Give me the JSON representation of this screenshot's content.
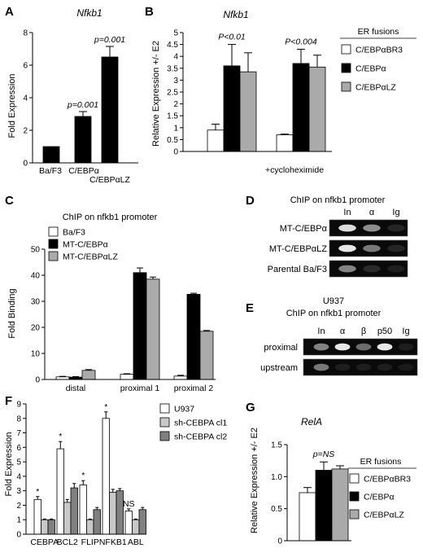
{
  "panels": {
    "A": {
      "letter": "A",
      "chart_data": {
        "type": "bar",
        "title": "Nfkb1",
        "ylabel": "Fold Expression",
        "ylim": [
          0,
          8
        ],
        "yticks": [
          "0",
          "2",
          "4",
          "6",
          "8"
        ],
        "categories": [
          "Ba/F3",
          "C/EBPα",
          "C/EBPαLZ"
        ],
        "values": [
          1.0,
          2.85,
          6.5
        ],
        "errors": [
          0,
          0.3,
          0.65
        ],
        "pvalues": [
          "",
          "p=0.001",
          "p=0.001"
        ],
        "color": "#000000"
      }
    },
    "B": {
      "letter": "B",
      "chart_data": {
        "type": "bar",
        "title": "Nfkb1",
        "ylabel": "Relative Expression +/- E2",
        "ylim": [
          0,
          5
        ],
        "yticks": [
          "0",
          "0.5",
          "1",
          "1.5",
          "2",
          "2.5",
          "3",
          "3.5",
          "4",
          "4.5",
          "5"
        ],
        "categories": [
          "",
          "+cycloheximide"
        ],
        "pvalues": [
          "P<0.01",
          "P<0.004"
        ],
        "legend_title": "ER fusions",
        "series": [
          {
            "name": "C/EBPαBR3",
            "values": [
              0.9,
              0.7
            ],
            "errors": [
              0.25,
              0.03
            ],
            "color": "#ffffff"
          },
          {
            "name": "C/EBPα",
            "values": [
              3.6,
              3.7
            ],
            "errors": [
              0.9,
              0.6
            ],
            "color": "#000000"
          },
          {
            "name": "C/EBPαLZ",
            "values": [
              3.35,
              3.55
            ],
            "errors": [
              0.8,
              0.5
            ],
            "color": "#aaaaaa"
          }
        ]
      }
    },
    "C": {
      "letter": "C",
      "chart_data": {
        "type": "bar",
        "title": "ChIP on nfkb1 promoter",
        "ylabel": "Fold Binding",
        "ylim": [
          0,
          50
        ],
        "yticks": [
          "0",
          "10",
          "20",
          "30",
          "40",
          "50"
        ],
        "categories": [
          "distal",
          "proximal 1",
          "proximal 2"
        ],
        "series": [
          {
            "name": "Ba/F3",
            "values": [
              1.0,
              2.0,
              1.3
            ],
            "errors": [
              0.2,
              0.2,
              0.3
            ],
            "color": "#ffffff"
          },
          {
            "name": "MT-C/EBPα",
            "values": [
              0.9,
              41.0,
              32.7
            ],
            "errors": [
              0.2,
              1.8,
              0.4
            ],
            "color": "#000000"
          },
          {
            "name": "MT-C/EBPαLZ",
            "values": [
              3.5,
              38.5,
              18.5
            ],
            "errors": [
              0.3,
              0.8,
              0.3
            ],
            "color": "#aaaaaa"
          }
        ]
      }
    },
    "D": {
      "letter": "D",
      "title": "ChIP on nfkb1 promoter",
      "lanes": [
        "In",
        "α",
        "Ig"
      ],
      "rows": [
        {
          "label": "MT-C/EBPα",
          "bands": [
            0.9,
            0.55,
            0.08
          ]
        },
        {
          "label": "MT-C/EBPαLZ",
          "bands": [
            0.95,
            0.45,
            0.08
          ]
        },
        {
          "label": "Parental Ba/F3",
          "bands": [
            0.5,
            0.1,
            0.05
          ]
        }
      ]
    },
    "E": {
      "letter": "E",
      "title1": "U937",
      "title2": "ChIP on nfkb1 promoter",
      "lanes": [
        "In",
        "α",
        "β",
        "p50",
        "Ig"
      ],
      "rows": [
        {
          "label": "proximal",
          "bands": [
            0.5,
            0.95,
            0.4,
            0.95,
            0.05
          ]
        },
        {
          "label": "upstream",
          "bands": [
            0.45,
            0.05,
            0.05,
            0.05,
            0.03
          ]
        }
      ]
    },
    "F": {
      "letter": "F",
      "chart_data": {
        "type": "bar",
        "ylabel": "Fold Expression",
        "ylim": [
          0,
          9
        ],
        "yticks": [
          "0",
          "1",
          "2",
          "3",
          "4",
          "5",
          "6",
          "7",
          "8",
          "9"
        ],
        "categories": [
          "CEBPA",
          "BCL2",
          "FLIP",
          "NFKB1",
          "ABL"
        ],
        "annotations": [
          "*",
          "*",
          "*",
          "*",
          "NS"
        ],
        "series": [
          {
            "name": "U937",
            "values": [
              2.4,
              5.9,
              3.4,
              8.0,
              1.6
            ],
            "errors": [
              0.2,
              0.5,
              0.3,
              0.45,
              0.15
            ],
            "color": "#ffffff"
          },
          {
            "name": "sh-CEBPA cl1",
            "values": [
              1.0,
              2.2,
              1.0,
              2.9,
              1.0
            ],
            "errors": [
              0.05,
              0.2,
              0.05,
              0.2,
              0.05
            ],
            "color": "#c8c8c8"
          },
          {
            "name": "sh-CEBPA cl2",
            "values": [
              1.0,
              3.2,
              1.7,
              3.0,
              1.7
            ],
            "errors": [
              0.05,
              0.3,
              0.15,
              0.15,
              0.15
            ],
            "color": "#808080"
          }
        ]
      }
    },
    "G": {
      "letter": "G",
      "chart_data": {
        "type": "bar",
        "title": "RelA",
        "ylabel": "Relative Expression +/- E2",
        "ylim": [
          0,
          1.5
        ],
        "yticks": [
          "0",
          "0.5",
          "1.0",
          "1.5"
        ],
        "categories": [
          ""
        ],
        "pvalues": [
          "p=NS"
        ],
        "legend_title": "ER fusions",
        "series": [
          {
            "name": "C/EBPαBR3",
            "values": [
              0.75
            ],
            "errors": [
              0.08
            ],
            "color": "#ffffff"
          },
          {
            "name": "C/EBPα",
            "values": [
              1.1
            ],
            "errors": [
              0.13
            ],
            "color": "#000000"
          },
          {
            "name": "C/EBPαLZ",
            "values": [
              1.12
            ],
            "errors": [
              0.05
            ],
            "color": "#aaaaaa"
          }
        ]
      }
    }
  }
}
